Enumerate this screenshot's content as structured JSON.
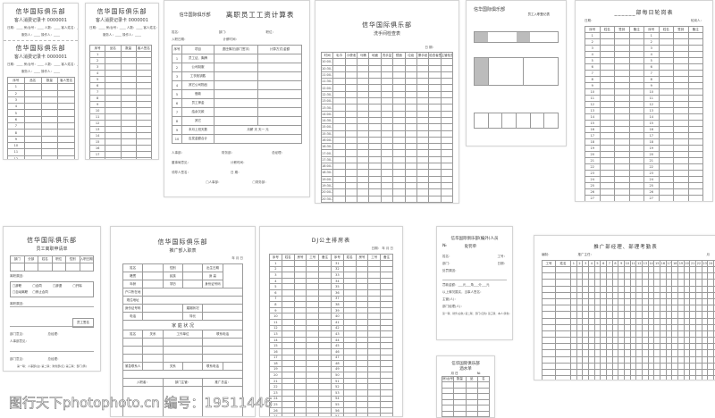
{
  "club": "信华国际俱乐部",
  "sheets": {
    "consume_card_a": {
      "subtitle": "客人消费记录卡",
      "serial": "0000001",
      "fields": "日期：____ 房/台号：____ 人数：____ 客人姓名：____",
      "fields2": "服务人：____ 操作人：____",
      "headers": [
        "序号",
        "品名",
        "数量",
        "客人签名"
      ],
      "rows": [
        "1",
        "2",
        "3",
        "4",
        "5",
        "6",
        "7",
        "8",
        "9",
        "10",
        "11",
        "12",
        "13",
        "14"
      ]
    },
    "consume_card_b": {
      "subtitle": "客人消费记录卡",
      "serial": "0000001",
      "headers": [
        "序号",
        "品名",
        "数量",
        "客人签名"
      ],
      "rows": [
        "1",
        "2",
        "3",
        "4",
        "5",
        "6",
        "7",
        "8",
        "9",
        "10",
        "11",
        "12",
        "13",
        "14",
        "15",
        "16",
        "17",
        "18",
        "19",
        "20"
      ]
    },
    "resign_salary": {
      "title": "离职员工工资计算表",
      "fields": [
        "姓名：",
        "部门：",
        "职位：",
        "入职日期：",
        "计薪时间："
      ],
      "headers": [
        "序号",
        "项目",
        "退还情况(部门签字)",
        "计算方式/金额"
      ],
      "rows": [
        [
          "1",
          "员工证、胸牌"
        ],
        [
          "2",
          "公司制服"
        ],
        [
          "3",
          "工衣柜钥匙"
        ],
        [
          "4",
          "其它公司物品"
        ],
        [
          "5",
          "借款"
        ],
        [
          "6",
          "员工押金"
        ],
        [
          "7",
          "结余欠款"
        ],
        [
          "8",
          "其它"
        ],
        [
          "9",
          "本月上班天数"
        ],
        [
          "10",
          "应发金额合计"
        ]
      ],
      "row9_calc": "月薪      天      天一      元",
      "footer": [
        "人事部：",
        "财务部：",
        "总经理：",
        "董事局意见：",
        "计薪时间：",
        "领导人签名：",
        "日  期："
      ],
      "checkboxes": [
        "人事部：",
        "财务部："
      ]
    },
    "restroom_check": {
      "subtitle": "洗手间检查表",
      "date_label": "日 期：",
      "headers": [
        "时间",
        "毛巾",
        "小便池",
        "马桶",
        "地面",
        "洗手盆",
        "镜面",
        "垃圾",
        "擦手纸",
        "检查者签名",
        "主管检查签名"
      ],
      "rows": [
        "10:00-10:30",
        "10:30-11:00",
        "11:00-11:30",
        "11:30-12:00",
        "12:00-12:30",
        "12:30-13:00",
        "13:00-13:30",
        "13:30-14:00",
        "14:00-14:30",
        "14:30-15:00",
        "15:00-15:30",
        "15:30-16:00",
        "16:00-16:30",
        "16:30-17:00",
        "17:00-17:30",
        "17:30-18:00",
        "18:00-18:30",
        "18:30-19:00",
        "19:00-19:30",
        "19:30-20:00",
        "20:00-20:30",
        "20:30-21:00",
        "21:00-21:30"
      ]
    },
    "entry_form": {
      "subtitle": "员工入职登记表"
    },
    "rotation": {
      "title": "______部每日轮岗表",
      "left_label": "日期：",
      "right_label": "轮岗人：",
      "headers": [
        "序号",
        "姓名",
        "签到",
        "备注",
        "序号",
        "姓名",
        "签到",
        "备注"
      ],
      "rows": [
        "1",
        "2",
        "3",
        "4",
        "5",
        "6",
        "7",
        "8",
        "9",
        "10",
        "11",
        "12",
        "13",
        "14",
        "15",
        "16",
        "17",
        "18",
        "19",
        "20",
        "21",
        "22",
        "23",
        "24",
        "25",
        "26",
        "27",
        "28",
        "29",
        "30"
      ]
    },
    "resign_apply": {
      "subtitle": "员工离职申请单",
      "headers": [
        "部门",
        "分部",
        "姓名",
        "职位",
        "性别",
        "入职日期"
      ],
      "reason_label": "离职原因：",
      "options": [
        "□辞职",
        "□合同",
        "□辞退",
        "□开除",
        "□自动离职",
        "□停止合同"
      ],
      "fields": [
        "离职原因：",
        "员工签名",
        "部门意见：",
        "总经理：",
        "人事部意见：",
        "部门意见：",
        "总经理："
      ],
      "note": "第一联：人事部(白) 第二联：财务部(红) 第三联：部门(黄)"
    },
    "promo_entry": {
      "subtitle": "推广部入职表",
      "date": "年  月  日",
      "rows": [
        [
          "姓名",
          "",
          "性别",
          "",
          "出生日期"
        ],
        [
          "籍贯",
          "",
          "民族",
          "",
          "身  高"
        ],
        [
          "年龄",
          "",
          "学历",
          "",
          "身份证号码"
        ]
      ],
      "fields": [
        "户口所在地",
        "现住地址",
        "身份证号码",
        "婚姻状况",
        "电话",
        "特长"
      ],
      "family_title": "家 庭 状 况",
      "family_headers": [
        "姓名",
        "关系",
        "工作单位",
        "联系电话"
      ],
      "contact": [
        "紧急联系人",
        "关系",
        "联系电话"
      ],
      "sign": [
        "入职者：",
        "部门主管：",
        "推广总监："
      ]
    },
    "dj_schedule": {
      "title": "DJ公主排房表",
      "date": "日期：    年  月  日",
      "headers": [
        "序号",
        "姓名",
        "房号",
        "工号",
        "备注",
        "序号",
        "姓名",
        "房号",
        "工号",
        "备注"
      ],
      "rows_left": [
        "1",
        "2",
        "3",
        "4",
        "5",
        "6",
        "7",
        "8",
        "9",
        "10",
        "11",
        "12",
        "13",
        "14",
        "15",
        "16",
        "17",
        "18",
        "19",
        "20",
        "21",
        "22",
        "23",
        "24",
        "25",
        "26",
        "27",
        "28",
        "29",
        "30"
      ],
      "rows_right": [
        "31",
        "32",
        "33",
        "34",
        "35",
        "36",
        "37",
        "38",
        "39",
        "40",
        "41",
        "42",
        "43",
        "44",
        "45",
        "46",
        "47",
        "48",
        "49",
        "50",
        "51",
        "52",
        "53",
        "54",
        "55",
        "56",
        "57",
        "58",
        "59",
        "60"
      ]
    },
    "penalty": {
      "title": "信华国际俱乐部(编外)人员",
      "no": "№",
      "subtitle": "处罚单",
      "fields": [
        "姓名：",
        "工号：",
        "部门：",
        "日期：",
        "处罚原因：",
        "罚款金额：___元___角___分___元",
        "以上情况属实，当事人签名：",
        "主管(人)：",
        "部门经理(人)："
      ],
      "note": "第一联：财务(白色) 第二联：部门(红色) 第三联：本人(黄色)"
    },
    "drinks": {
      "title": "信华国际俱乐部",
      "subtitle": "酒水单",
      "no": "№",
      "date": "月  日",
      "headers": [
        "房/台号",
        "数量",
        "品",
        "名"
      ]
    },
    "attendance": {
      "title": "推广部经理、部理考勤表",
      "labels": [
        "编制：",
        "推广主任：",
        "月"
      ],
      "headers": [
        "工号",
        "姓名"
      ],
      "days": [
        "1",
        "2",
        "3",
        "4",
        "5",
        "6",
        "7",
        "8",
        "9",
        "10",
        "11",
        "12",
        "13",
        "14",
        "15",
        "16",
        "17",
        "18",
        "19",
        "20",
        "21",
        "22",
        "23",
        "24",
        "25",
        "26",
        "27",
        "28",
        "29",
        "30",
        "31"
      ]
    }
  },
  "watermark": "图行天下photophoto.cn  编号：19511446"
}
